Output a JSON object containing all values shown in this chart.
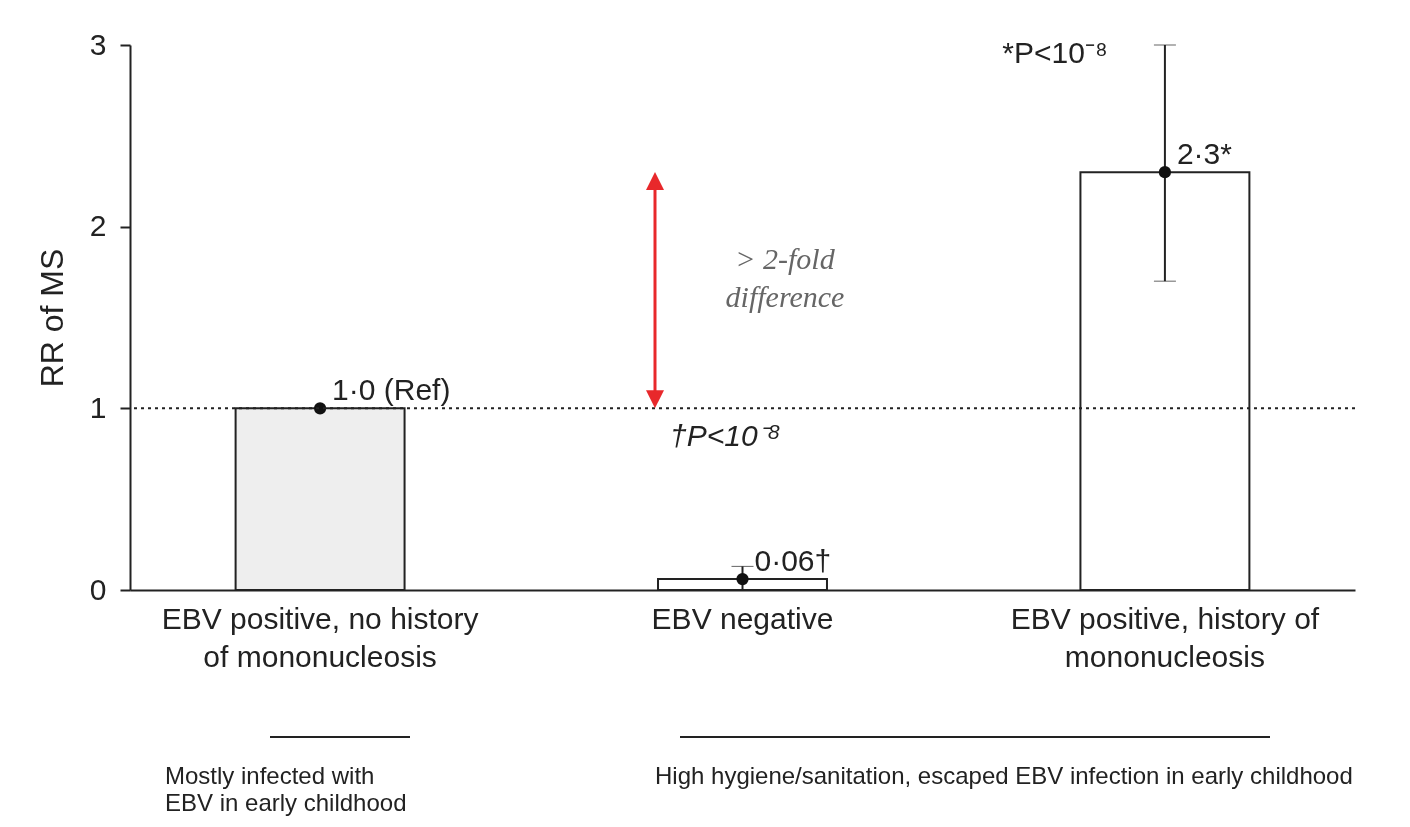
{
  "chart_data": {
    "type": "bar",
    "ylabel": "RR of MS",
    "categories": [
      "EBV positive, no history of mononucleosis",
      "EBV negative",
      "EBV positive, history of mononucleosis"
    ],
    "series": [
      {
        "type": "bar",
        "colors": [
          "#eeeeee",
          "#ffffff",
          "#ffffff"
        ],
        "values": [
          1.0,
          0.06,
          2.3
        ],
        "errors": [
          null,
          [
            0,
            0.13
          ],
          [
            1.7,
            3.0
          ]
        ],
        "value_labels": [
          "1·0 (Ref)",
          "0·06†",
          "2·3*"
        ]
      },
      {
        "type": "scatter",
        "x": [
          "EBV positive, no history of mononucleosis",
          "EBV negative",
          "EBV positive, history of mononucleosis"
        ],
        "values": [
          1.0,
          0.06,
          2.3
        ],
        "color": "#111111"
      }
    ],
    "ylim": [
      0,
      3
    ],
    "yticks": [
      0,
      1,
      2,
      3
    ],
    "grid": false,
    "ref_lines": [
      {
        "axis": "y",
        "value": 1,
        "color": "#222222",
        "line_style": "dotted"
      }
    ],
    "annotations": [
      "> 2-fold difference",
      "†P<10⁻⁸",
      {
        "text": "*P<10⁻⁸",
        "x": "EBV positive, history of mononucleosis",
        "y": 2.95
      },
      "Mostly infected with EBV in early childhood",
      "High hygiene/sanitation, escaped EBV infection in early childhood"
    ]
  }
}
